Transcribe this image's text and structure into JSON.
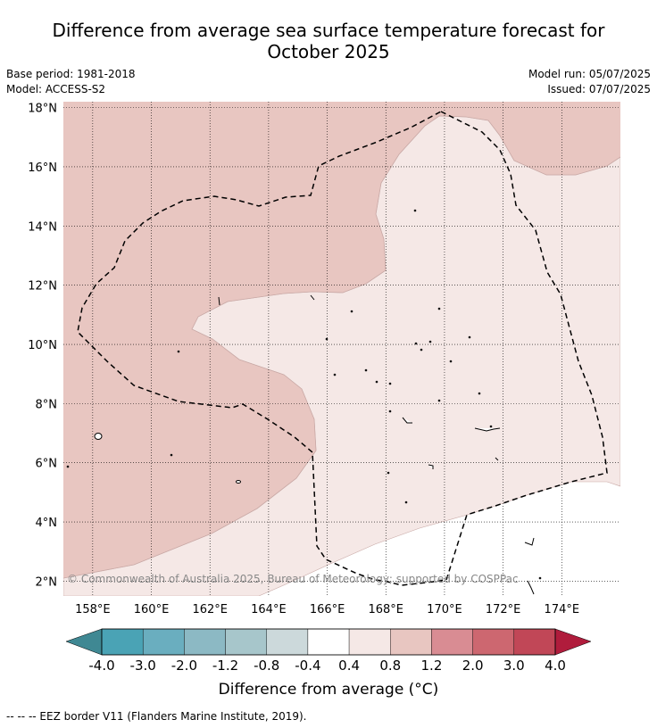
{
  "title_line1": "Difference from average sea surface temperature forecast for",
  "title_line2": "October 2025",
  "meta_left": [
    "Base period: 1981-2018",
    "Model: ACCESS-S2"
  ],
  "meta_right": [
    "Model run: 05/07/2025",
    "Issued: 07/07/2025"
  ],
  "copyright": "© Commonwealth of Australia 2025, Bureau of Meteorology; supported by COSPPac",
  "footnote": "--  --  -- EEZ border V11 (Flanders Marine Institute, 2019).",
  "colorbar_label": "Difference from average (°C)",
  "map": {
    "lon_ticks": [
      "158°E",
      "160°E",
      "162°E",
      "164°E",
      "166°E",
      "168°E",
      "170°E",
      "172°E",
      "174°E"
    ],
    "lat_ticks": [
      "18°N",
      "16°N",
      "14°N",
      "12°N",
      "10°N",
      "8°N",
      "6°N",
      "4°N",
      "2°N"
    ],
    "lon_range": [
      157,
      176
    ],
    "lat_range": [
      1.5,
      18.2
    ]
  },
  "legend": {
    "tick_labels": [
      "-4.0",
      "-3.0",
      "-2.0",
      "-1.2",
      "-0.8",
      "-0.4",
      "0.4",
      "0.8",
      "1.2",
      "2.0",
      "3.0",
      "4.0"
    ],
    "colors": [
      "#3f8893",
      "#4aa3b5",
      "#6aaebf",
      "#8cb9c4",
      "#a7c6cb",
      "#ccd9db",
      "#ffffff",
      "#f5e8e6",
      "#e8c6c1",
      "#d98c93",
      "#cd6770",
      "#c14757",
      "#b01c3c"
    ]
  },
  "colors": {
    "warm_anomaly": "#e8c6c1",
    "slight_anomaly": "#f5e8e6",
    "neutral": "#ffffff"
  }
}
